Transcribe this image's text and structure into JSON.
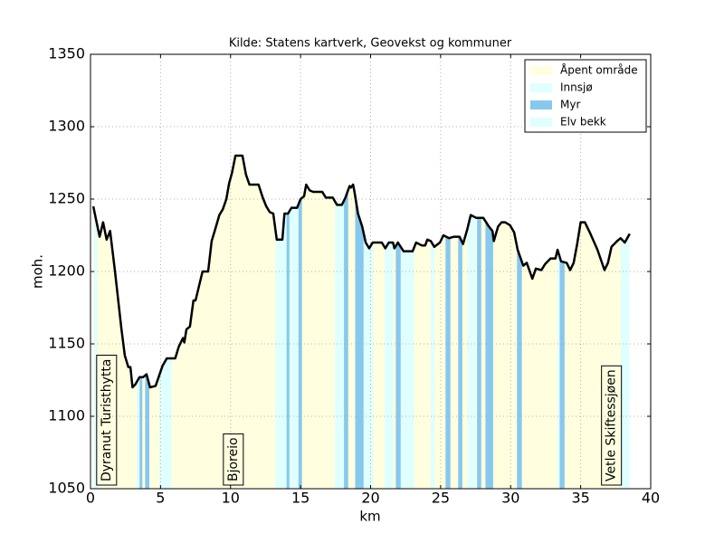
{
  "chart_data": {
    "type": "area",
    "title": "Kilde: Statens kartverk, Geovekst og kommuner",
    "xlabel": "km",
    "ylabel": "moh.",
    "xlim": [
      0,
      40
    ],
    "ylim": [
      1050,
      1350
    ],
    "xticks": [
      0,
      5,
      10,
      15,
      20,
      25,
      30,
      35,
      40
    ],
    "yticks": [
      1050,
      1100,
      1150,
      1200,
      1250,
      1300,
      1350
    ],
    "grid": true,
    "legend": "upper right",
    "line_color": "#000000",
    "x": [
      0.2,
      0.65,
      0.9,
      1.15,
      1.4,
      1.75,
      2.2,
      2.45,
      2.7,
      2.85,
      3.0,
      3.2,
      3.5,
      3.75,
      4.0,
      4.25,
      4.65,
      4.9,
      5.15,
      5.45,
      6.05,
      6.3,
      6.6,
      6.7,
      6.85,
      7.1,
      7.35,
      7.5,
      7.75,
      8.0,
      8.4,
      8.65,
      8.9,
      9.2,
      9.45,
      9.7,
      9.9,
      10.1,
      10.35,
      10.85,
      11.1,
      11.35,
      12.0,
      12.3,
      12.55,
      12.8,
      13.05,
      13.3,
      13.7,
      13.85,
      14.1,
      14.35,
      14.75,
      15.0,
      15.25,
      15.4,
      15.65,
      15.9,
      16.55,
      16.8,
      17.3,
      17.6,
      17.95,
      18.2,
      18.5,
      18.6,
      18.75,
      18.85,
      19.1,
      19.4,
      19.65,
      19.9,
      20.15,
      20.8,
      21.05,
      21.3,
      21.6,
      21.7,
      21.95,
      22.35,
      23.0,
      23.25,
      23.65,
      23.9,
      24.05,
      24.3,
      24.55,
      24.95,
      25.2,
      25.6,
      25.95,
      26.35,
      26.6,
      26.9,
      27.15,
      27.55,
      28.05,
      28.45,
      28.7,
      28.8,
      29.1,
      29.35,
      29.6,
      29.95,
      30.25,
      30.5,
      30.9,
      31.15,
      31.55,
      31.8,
      32.2,
      32.45,
      32.85,
      33.2,
      33.35,
      33.6,
      34.0,
      34.25,
      34.5,
      34.75,
      35.0,
      35.3,
      35.65,
      36.2,
      36.7,
      36.95,
      37.2,
      37.6,
      37.85,
      38.15,
      38.5
    ],
    "values": [
      1245,
      1224,
      1234,
      1222,
      1228,
      1200,
      1161,
      1142,
      1134,
      1134,
      1120,
      1122,
      1127,
      1127,
      1129,
      1120,
      1121,
      1128,
      1135,
      1140,
      1140,
      1148,
      1154,
      1151,
      1160,
      1162,
      1180,
      1180,
      1190,
      1200,
      1200,
      1221,
      1229,
      1239,
      1243,
      1250,
      1261,
      1268,
      1280,
      1280,
      1267,
      1260,
      1260,
      1251,
      1245,
      1241,
      1240,
      1222,
      1222,
      1240,
      1240,
      1244,
      1244,
      1250,
      1252,
      1260,
      1256,
      1255,
      1255,
      1251,
      1251,
      1246,
      1246,
      1251,
      1259,
      1258,
      1260,
      1255,
      1240,
      1231,
      1220,
      1216,
      1220,
      1220,
      1216,
      1220,
      1220,
      1216,
      1220,
      1214,
      1214,
      1220,
      1218,
      1218,
      1222,
      1221,
      1217,
      1220,
      1225,
      1223,
      1224,
      1224,
      1219,
      1229,
      1239,
      1237,
      1237,
      1231,
      1228,
      1221,
      1231,
      1234,
      1234,
      1232,
      1227,
      1215,
      1204,
      1206,
      1195,
      1202,
      1201,
      1205,
      1209,
      1209,
      1215,
      1207,
      1206,
      1201,
      1206,
      1219,
      1234,
      1234,
      1227,
      1215,
      1201,
      1206,
      1217,
      1221,
      1223,
      1220,
      1226
    ],
    "land_cover": [
      {
        "name": "Åpent område",
        "color": "#ffffe0",
        "spans": [
          [
            0.2,
            38.5
          ]
        ]
      },
      {
        "name": "Innsjø",
        "color": "#e0ffff",
        "spans": [
          [
            4.9,
            5.8
          ],
          [
            13.2,
            14.0
          ],
          [
            14.2,
            14.85
          ],
          [
            17.45,
            18.1
          ],
          [
            19.5,
            20.2
          ],
          [
            21.0,
            21.6
          ],
          [
            22.15,
            23.1
          ],
          [
            26.9,
            27.5
          ],
          [
            37.85,
            38.5
          ]
        ]
      },
      {
        "name": "Myr",
        "color": "#87c8ee",
        "spans": [
          [
            3.5,
            3.7
          ],
          [
            3.9,
            4.2
          ],
          [
            14.0,
            14.2
          ],
          [
            14.85,
            15.1
          ],
          [
            18.1,
            18.4
          ],
          [
            18.9,
            19.5
          ],
          [
            21.8,
            22.15
          ],
          [
            25.35,
            25.7
          ],
          [
            26.25,
            26.55
          ],
          [
            27.6,
            27.9
          ],
          [
            28.2,
            28.75
          ],
          [
            30.45,
            30.8
          ],
          [
            33.5,
            33.85
          ]
        ]
      },
      {
        "name": "Elv bekk",
        "color": "#e0ffff",
        "spans": [
          [
            0.25,
            0.5
          ],
          [
            3.3,
            3.5
          ],
          [
            24.3,
            24.6
          ],
          [
            33.35,
            33.5
          ]
        ]
      }
    ],
    "annotations": [
      {
        "text": "Dyranut Turisthytta",
        "x": 1.15
      },
      {
        "text": "Bjoreio",
        "x": 10.2
      },
      {
        "text": "Vetle Skiftessjøen",
        "x": 37.2
      }
    ]
  }
}
